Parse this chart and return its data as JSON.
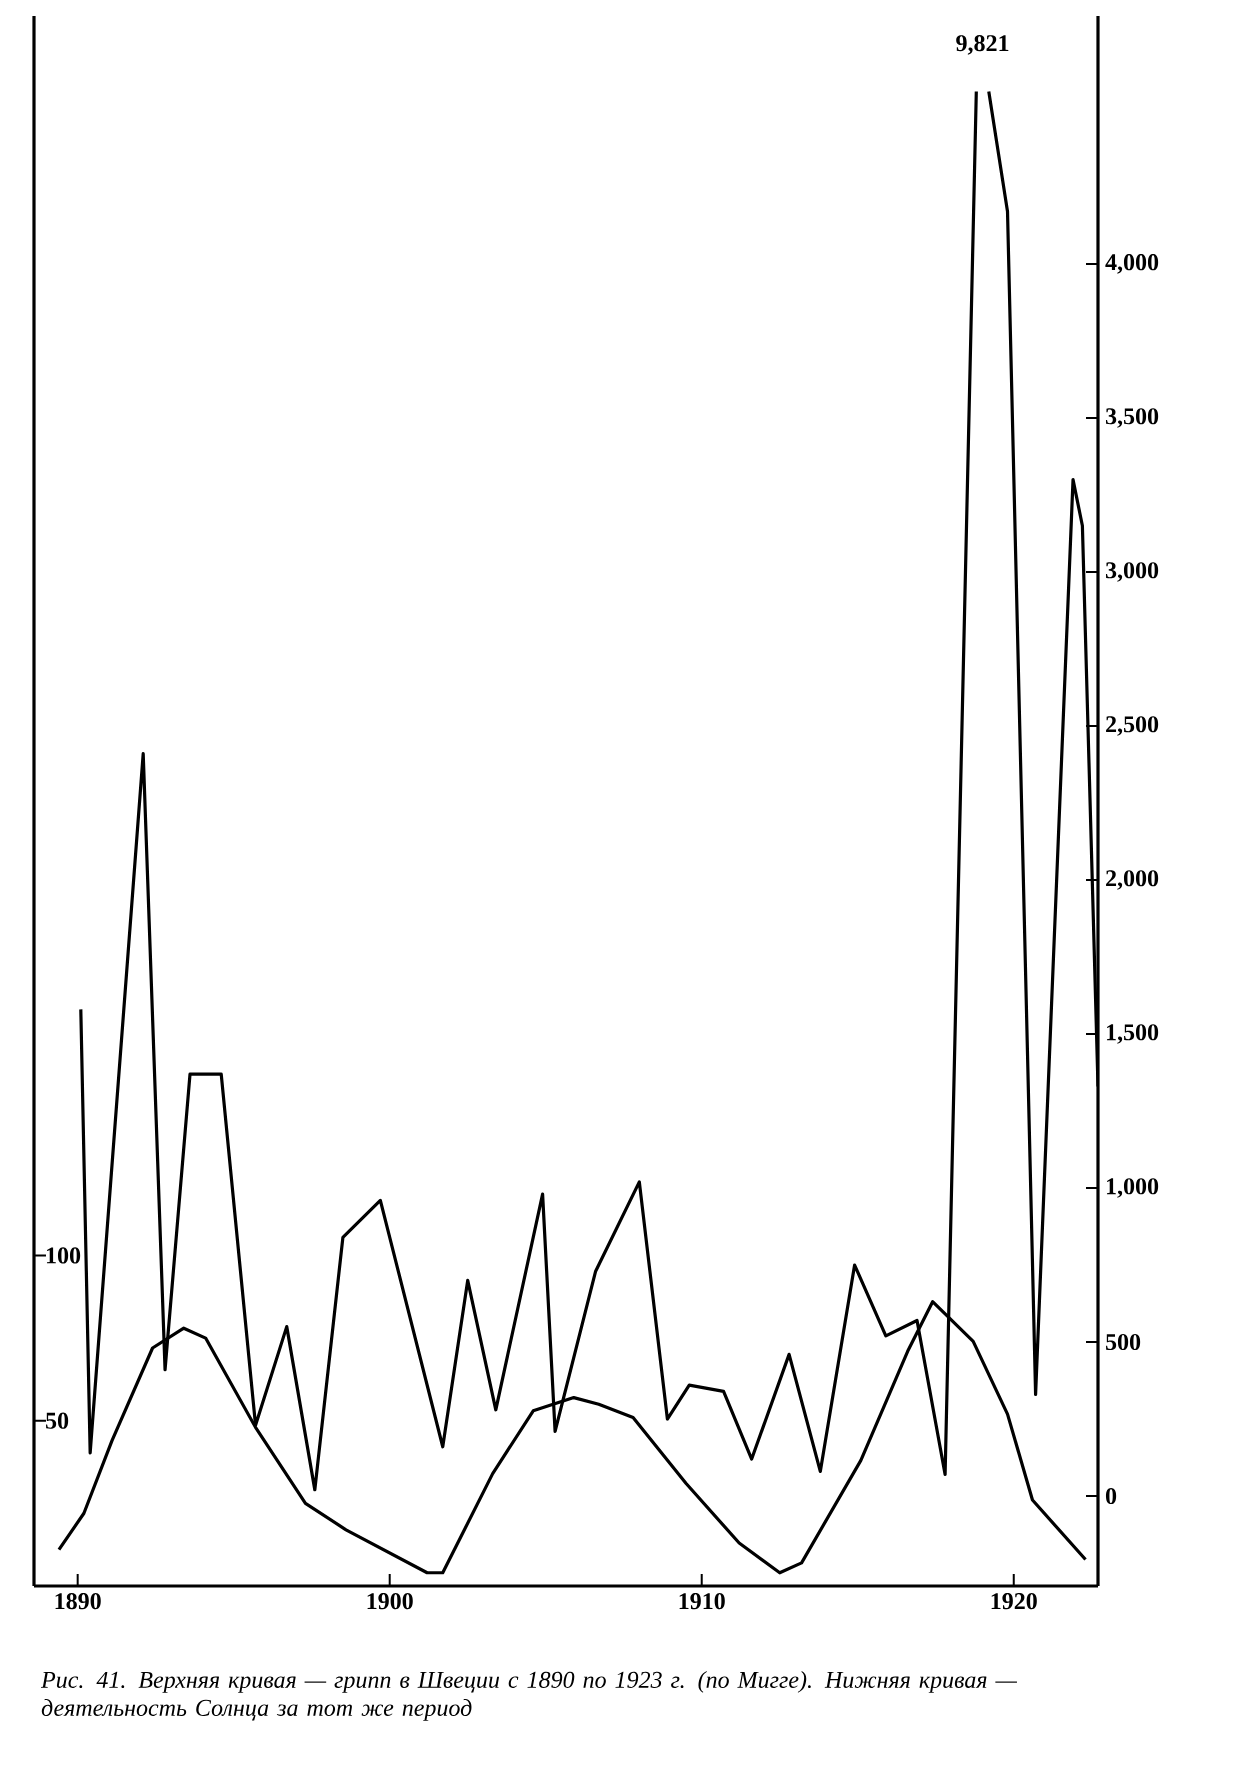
{
  "chart_data": {
    "type": "line",
    "annotations": [
      "9,821",
      "Рис. 41. Верхняя кривая — грипп в Швеции с 1890 по 1923 г. (по Мигге). Нижняя кривая — деятельность Солнца за тот же период"
    ],
    "xlim": [
      1888.6,
      1922.7
    ],
    "xticks": [
      1890,
      1900,
      1910,
      1920
    ],
    "ylim": [
      0,
      475
    ],
    "yticks": [
      50,
      100
    ],
    "y2lim": [
      -292,
      4805
    ],
    "y2ticks": [
      0,
      500,
      {
        "value": 1000,
        "label": "1,000"
      },
      {
        "value": 1500,
        "label": "1,500"
      },
      {
        "value": 2000,
        "label": "2,000"
      },
      {
        "value": 2500,
        "label": "2,500"
      },
      {
        "value": 3000,
        "label": "3,000"
      },
      {
        "value": 3500,
        "label": "3,500"
      },
      {
        "value": 4000,
        "label": "4,000"
      }
    ],
    "grid": false,
    "legend": false,
    "marker": "none",
    "line_style": "solid",
    "series": [
      {
        "axis": "y2",
        "color": "#000000",
        "x": [
          1890.1,
          1890.4,
          1892.1,
          1892.8,
          1893.6,
          1894.6,
          1895.7,
          1896.7,
          1897.6,
          1898.5,
          1899.7,
          1901.7,
          1902.5,
          1903.4,
          1904.9,
          1905.3,
          1906.6,
          1908.0,
          1908.9,
          1909.6,
          1910.7,
          1911.6,
          1912.8,
          1913.8,
          1914.9,
          1915.9,
          1916.9,
          1917.8,
          1918.8,
          1919.0,
          1919.2,
          1919.8,
          1920.7,
          1921.9,
          1922.2,
          1922.7
        ],
        "values": [
          1580,
          140,
          2410,
          410,
          1370,
          1370,
          230,
          550,
          20,
          840,
          960,
          160,
          700,
          280,
          980,
          210,
          730,
          1020,
          250,
          360,
          340,
          120,
          460,
          80,
          750,
          520,
          570,
          70,
          4560,
          null,
          4560,
          4170,
          330,
          3300,
          3150,
          1330
        ]
      },
      {
        "color": "#000000",
        "x": [
          1889.4,
          1890.2,
          1891.1,
          1892.4,
          1893.4,
          1894.1,
          1895.7,
          1897.3,
          1898.6,
          1901.2,
          1901.7,
          1903.3,
          1904.6,
          1905.9,
          1906.7,
          1907.8,
          1909.5,
          1911.2,
          1912.5,
          1913.2,
          1915.1,
          1916.6,
          1917.4,
          1918.7,
          1919.8,
          1920.6,
          1922.3
        ],
        "values": [
          11,
          22,
          44,
          72,
          78,
          75,
          48,
          25,
          17,
          4,
          4,
          34,
          53,
          57,
          55,
          51,
          31,
          13,
          4,
          7,
          38,
          71,
          86,
          74,
          52,
          26,
          8
        ]
      }
    ]
  }
}
